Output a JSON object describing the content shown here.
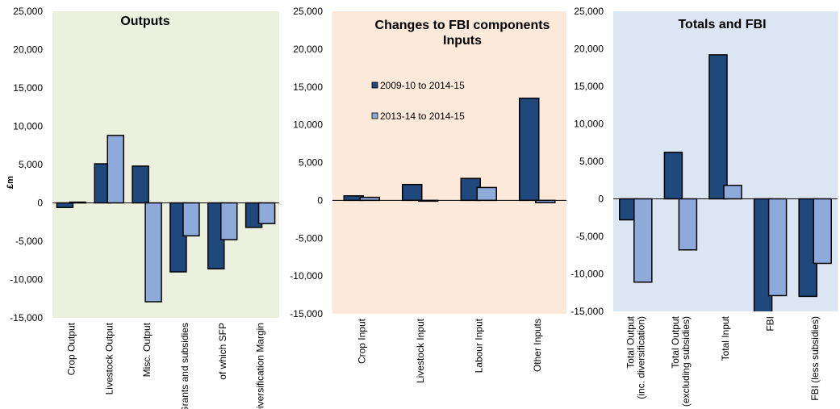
{
  "chart_data": [
    {
      "type": "bar",
      "title": "Outputs",
      "ylabel": "£m",
      "ylim": [
        -15000,
        25000
      ],
      "yticks": [
        "25,000",
        "20,000",
        "15,000",
        "10,000",
        "5,000",
        "0",
        "-5,000",
        "-10,000",
        "-15,000"
      ],
      "categories": [
        "Crop Output",
        "Livestock Output",
        "Misc. Output",
        "Grants and subsidies",
        "of which SFP",
        "Diversification Margin"
      ],
      "series": [
        {
          "name": "2009-10 to 2014-15",
          "values": [
            -600,
            5100,
            4800,
            -9000,
            -8600,
            -3200
          ]
        },
        {
          "name": "2013-14 to 2014-15",
          "values": [
            100,
            8800,
            -12900,
            -4300,
            -4800,
            -2700
          ]
        }
      ],
      "background": "#ebf1de",
      "colors": [
        "#1f497d",
        "#8eaadb"
      ]
    },
    {
      "type": "bar",
      "title": "Changes to FBI components",
      "subtitle": "Inputs",
      "ylim": [
        -15000,
        25000
      ],
      "yticks": [
        "25,000",
        "20,000",
        "15,000",
        "10,000",
        "5,000",
        "0",
        "-5,000",
        "-10,000",
        "-15,000"
      ],
      "categories": [
        "Crop Input",
        "Livestock Input",
        "Labour Input",
        "Other Inputs"
      ],
      "series": [
        {
          "name": "2009-10 to 2014-15",
          "values": [
            600,
            2100,
            2900,
            13500
          ]
        },
        {
          "name": "2013-14 to 2014-15",
          "values": [
            400,
            -100,
            1700,
            -300
          ]
        }
      ],
      "legend_position": "top-left",
      "background": "#fde9d9",
      "colors": [
        "#1f497d",
        "#8eaadb"
      ]
    },
    {
      "type": "bar",
      "title": "Totals and FBI",
      "ylim": [
        -15000,
        25000
      ],
      "yticks": [
        "25,000",
        "20,000",
        "15,000",
        "10,000",
        "5,000",
        "0",
        "-5,000",
        "-10,000",
        "-15,000"
      ],
      "categories": [
        "Total Output (inc. diversification)",
        "Total Output (excluding subsidies)",
        "Total Input",
        "FBI",
        "FBI (less subsidies)"
      ],
      "series": [
        {
          "name": "2009-10 to 2014-15",
          "values": [
            -2800,
            6200,
            19200,
            -16500,
            -13000
          ]
        },
        {
          "name": "2013-14 to 2014-15",
          "values": [
            -11100,
            -6800,
            1800,
            -12900,
            -8600
          ]
        }
      ],
      "background": "#dce6f2",
      "colors": [
        "#1f497d",
        "#8eaadb"
      ]
    }
  ]
}
